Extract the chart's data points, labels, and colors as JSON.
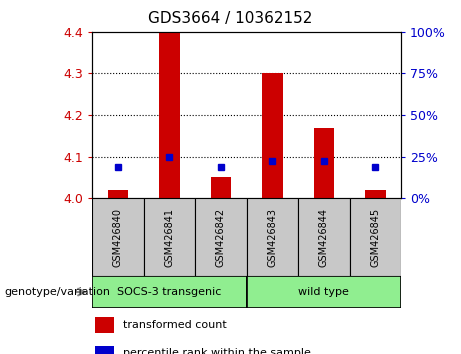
{
  "title": "GDS3664 / 10362152",
  "samples": [
    "GSM426840",
    "GSM426841",
    "GSM426842",
    "GSM426843",
    "GSM426844",
    "GSM426845"
  ],
  "red_values": [
    4.02,
    4.4,
    4.05,
    4.3,
    4.17,
    4.02
  ],
  "blue_values": [
    4.075,
    4.1,
    4.075,
    4.09,
    4.09,
    4.075
  ],
  "ylim": [
    4.0,
    4.4
  ],
  "yticks_left": [
    4.0,
    4.1,
    4.2,
    4.3,
    4.4
  ],
  "yticks_right": [
    0,
    25,
    50,
    75,
    100
  ],
  "left_axis_color": "#cc0000",
  "right_axis_color": "#0000cc",
  "bar_color": "#cc0000",
  "dot_color": "#0000cc",
  "label_bg_color": "#c8c8c8",
  "group_bg_color": "#90EE90",
  "group_border_color": "#000000",
  "group1_label": "SOCS-3 transgenic",
  "group2_label": "wild type",
  "legend1": "transformed count",
  "legend2": "percentile rank within the sample",
  "genotype_label": "genotype/variation"
}
